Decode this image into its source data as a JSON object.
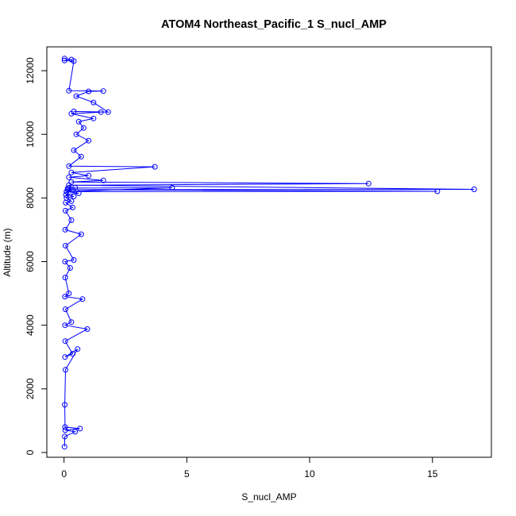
{
  "chart_data": {
    "type": "scatter",
    "title": "ATOM4 Northeast_Pacific_1 S_nucl_AMP",
    "xlabel": "S_nucl_AMP",
    "ylabel": "Altitude (m)",
    "xlim": [
      -0.7,
      17.4
    ],
    "ylim": [
      -150,
      12750
    ],
    "x_ticks": [
      0,
      5,
      10,
      15
    ],
    "y_ticks": [
      0,
      2000,
      4000,
      6000,
      8000,
      10000,
      12000
    ],
    "colors": {
      "series": "#0000ff",
      "axis": "#000000"
    },
    "series": [
      {
        "type": "line-with-points",
        "x": [
          0.02,
          0.03,
          0.45,
          0.05,
          0.65,
          0.04,
          0.03,
          0.06,
          0.55,
          0.04,
          0.35,
          0.05,
          0.95,
          0.04,
          0.3,
          0.06,
          0.75,
          0.04,
          0.2,
          0.05,
          0.25,
          0.04,
          0.4,
          0.06,
          0.7,
          0.05,
          0.3,
          0.06,
          0.35,
          0.07,
          0.3,
          0.1,
          0.4,
          0.08,
          0.6,
          0.1,
          0.35,
          0.15,
          0.45,
          0.2,
          4.4,
          0.1,
          15.2,
          0.15,
          16.7,
          0.2,
          12.4,
          0.3,
          1.6,
          0.2,
          1.0,
          0.3,
          3.7,
          0.2,
          0.7,
          0.4,
          1.0,
          0.5,
          0.8,
          0.6,
          1.2,
          0.3,
          1.5,
          0.4,
          1.8,
          1.2,
          0.5,
          1.0,
          1.6,
          0.2,
          0.4,
          0.02,
          0.3,
          0.02
        ],
        "y": [
          180,
          500,
          650,
          700,
          750,
          800,
          1500,
          2600,
          3250,
          3000,
          3100,
          3500,
          3880,
          4000,
          4100,
          4500,
          4820,
          4900,
          5000,
          5500,
          5800,
          6000,
          6050,
          6500,
          6860,
          7000,
          7300,
          7600,
          7700,
          7850,
          7900,
          8000,
          8050,
          8100,
          8150,
          8200,
          8250,
          8300,
          8320,
          8310,
          8320,
          8200,
          8210,
          8260,
          8270,
          8400,
          8450,
          8500,
          8550,
          8650,
          8700,
          8800,
          8980,
          9000,
          9300,
          9500,
          9800,
          10000,
          10200,
          10400,
          10500,
          10650,
          10700,
          10720,
          10700,
          11000,
          11200,
          11350,
          11360,
          11370,
          12300,
          12320,
          12350,
          12380
        ]
      }
    ]
  }
}
